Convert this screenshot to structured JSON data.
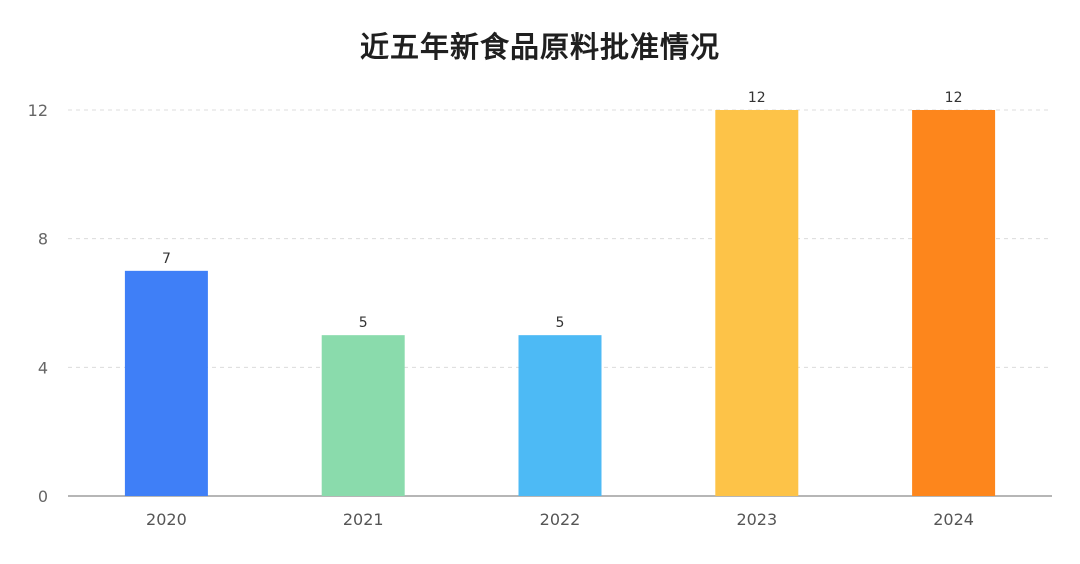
{
  "chart_data": {
    "type": "bar",
    "title": "近五年新食品原料批准情况",
    "categories": [
      "2020",
      "2021",
      "2022",
      "2023",
      "2024"
    ],
    "values": [
      7,
      5,
      5,
      12,
      12
    ],
    "colors": [
      "#3f7ff7",
      "#8adbac",
      "#4dbaf5",
      "#fdc348",
      "#fd861c"
    ],
    "yticks": [
      0,
      4,
      8,
      12
    ],
    "ylim": [
      0,
      12
    ],
    "xlabel": "",
    "ylabel": "",
    "grid": true,
    "data_labels": true
  }
}
